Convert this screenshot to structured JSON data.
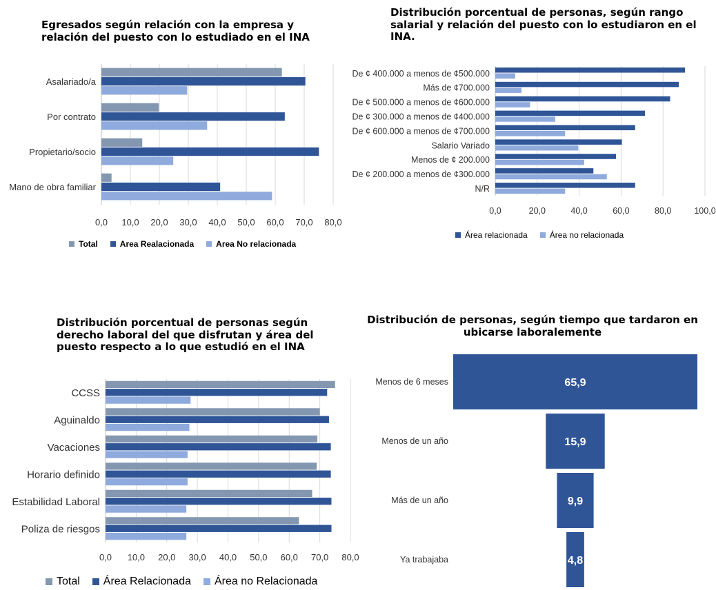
{
  "colors": {
    "total": "#8497b0",
    "related": "#2f5597",
    "unrelated": "#8faadc",
    "funnel": "#2f5597"
  },
  "chart_data": [
    {
      "type": "bar",
      "orientation": "horizontal",
      "title": "Egresados según relación con la empresa y relación del puesto con lo estudiado en el INA",
      "categories": [
        "Asalariado/a",
        "Por contrato",
        "Propietario/socio",
        "Mano de obra familiar"
      ],
      "series": [
        {
          "name": "Total",
          "values": [
            62.3,
            19.8,
            14.1,
            3.5
          ]
        },
        {
          "name": "Area Realacionada",
          "values": [
            70.4,
            63.3,
            75.1,
            41.0
          ]
        },
        {
          "name": "Area No relacionada",
          "values": [
            29.6,
            36.5,
            24.8,
            58.9
          ]
        }
      ],
      "xlim": [
        0,
        80
      ],
      "ticks": [
        "0,0",
        "10,0",
        "20,0",
        "30,0",
        "40,0",
        "50,0",
        "60,0",
        "70,0",
        "80,0"
      ],
      "grid": true,
      "legend": "bottom"
    },
    {
      "type": "bar",
      "orientation": "horizontal",
      "title": "Distribución porcentual de personas, según rango salarial y relación del puesto con lo estudiaron en el INA.",
      "categories": [
        "De ¢ 400.000 a menos de ¢500.000",
        "Más de ¢700.000",
        "De ¢ 500.000 a menos de ¢600.000",
        "De ¢ 300.000 a menos de ¢400.000",
        "De ¢ 600.000 a menos de ¢700.000",
        "Salario Variado",
        "Menos de ¢ 200.000",
        "De ¢ 200.000 a menos de ¢300.000",
        "N/R"
      ],
      "series": [
        {
          "name": "Área relacionada",
          "values": [
            90.5,
            87.5,
            83.4,
            71.4,
            66.7,
            60.4,
            57.6,
            46.8,
            66.7
          ]
        },
        {
          "name": "Área no relacionada",
          "values": [
            9.5,
            12.5,
            16.6,
            28.6,
            33.3,
            39.6,
            42.4,
            53.2,
            33.3
          ]
        }
      ],
      "xlim": [
        0,
        100
      ],
      "ticks": [
        "0,0",
        "20,0",
        "40,0",
        "60,0",
        "80,0",
        "100,0"
      ],
      "grid": true,
      "legend": "bottom"
    },
    {
      "type": "bar",
      "orientation": "horizontal",
      "title": "Distribución porcentual de personas según derecho laboral del que disfrutan y área del puesto respecto a lo que estudió en el INA",
      "categories": [
        "CCSS",
        "Aguinaldo",
        "Vacaciones",
        "Horario definido",
        "Estabilidad Laboral",
        "Poliza de riesgos"
      ],
      "series": [
        {
          "name": "Total",
          "values": [
            75.0,
            70.0,
            69.2,
            69.0,
            67.5,
            63.2
          ]
        },
        {
          "name": "Área Relacionada",
          "values": [
            72.4,
            73.0,
            73.6,
            73.6,
            73.8,
            73.8
          ]
        },
        {
          "name": "Área no Relacionada",
          "values": [
            27.8,
            27.4,
            26.8,
            26.8,
            26.4,
            26.4
          ]
        }
      ],
      "xlim": [
        0,
        80
      ],
      "ticks": [
        "0,0",
        "10,0",
        "20,0",
        "30,0",
        "40,0",
        "50,0",
        "60,0",
        "70,0",
        "80,0"
      ],
      "grid": true,
      "legend": "bottom"
    },
    {
      "type": "funnel",
      "title": "Distribución de personas, según tiempo que tardaron en ubicarse laboralemente",
      "categories": [
        "Menos de 6 meses",
        "Menos de un año",
        "Más de un año",
        "Ya trabajaba"
      ],
      "values": [
        65.9,
        15.9,
        9.9,
        4.8
      ],
      "labels": [
        "65,9",
        "15,9",
        "9,9",
        "4,8"
      ]
    }
  ]
}
